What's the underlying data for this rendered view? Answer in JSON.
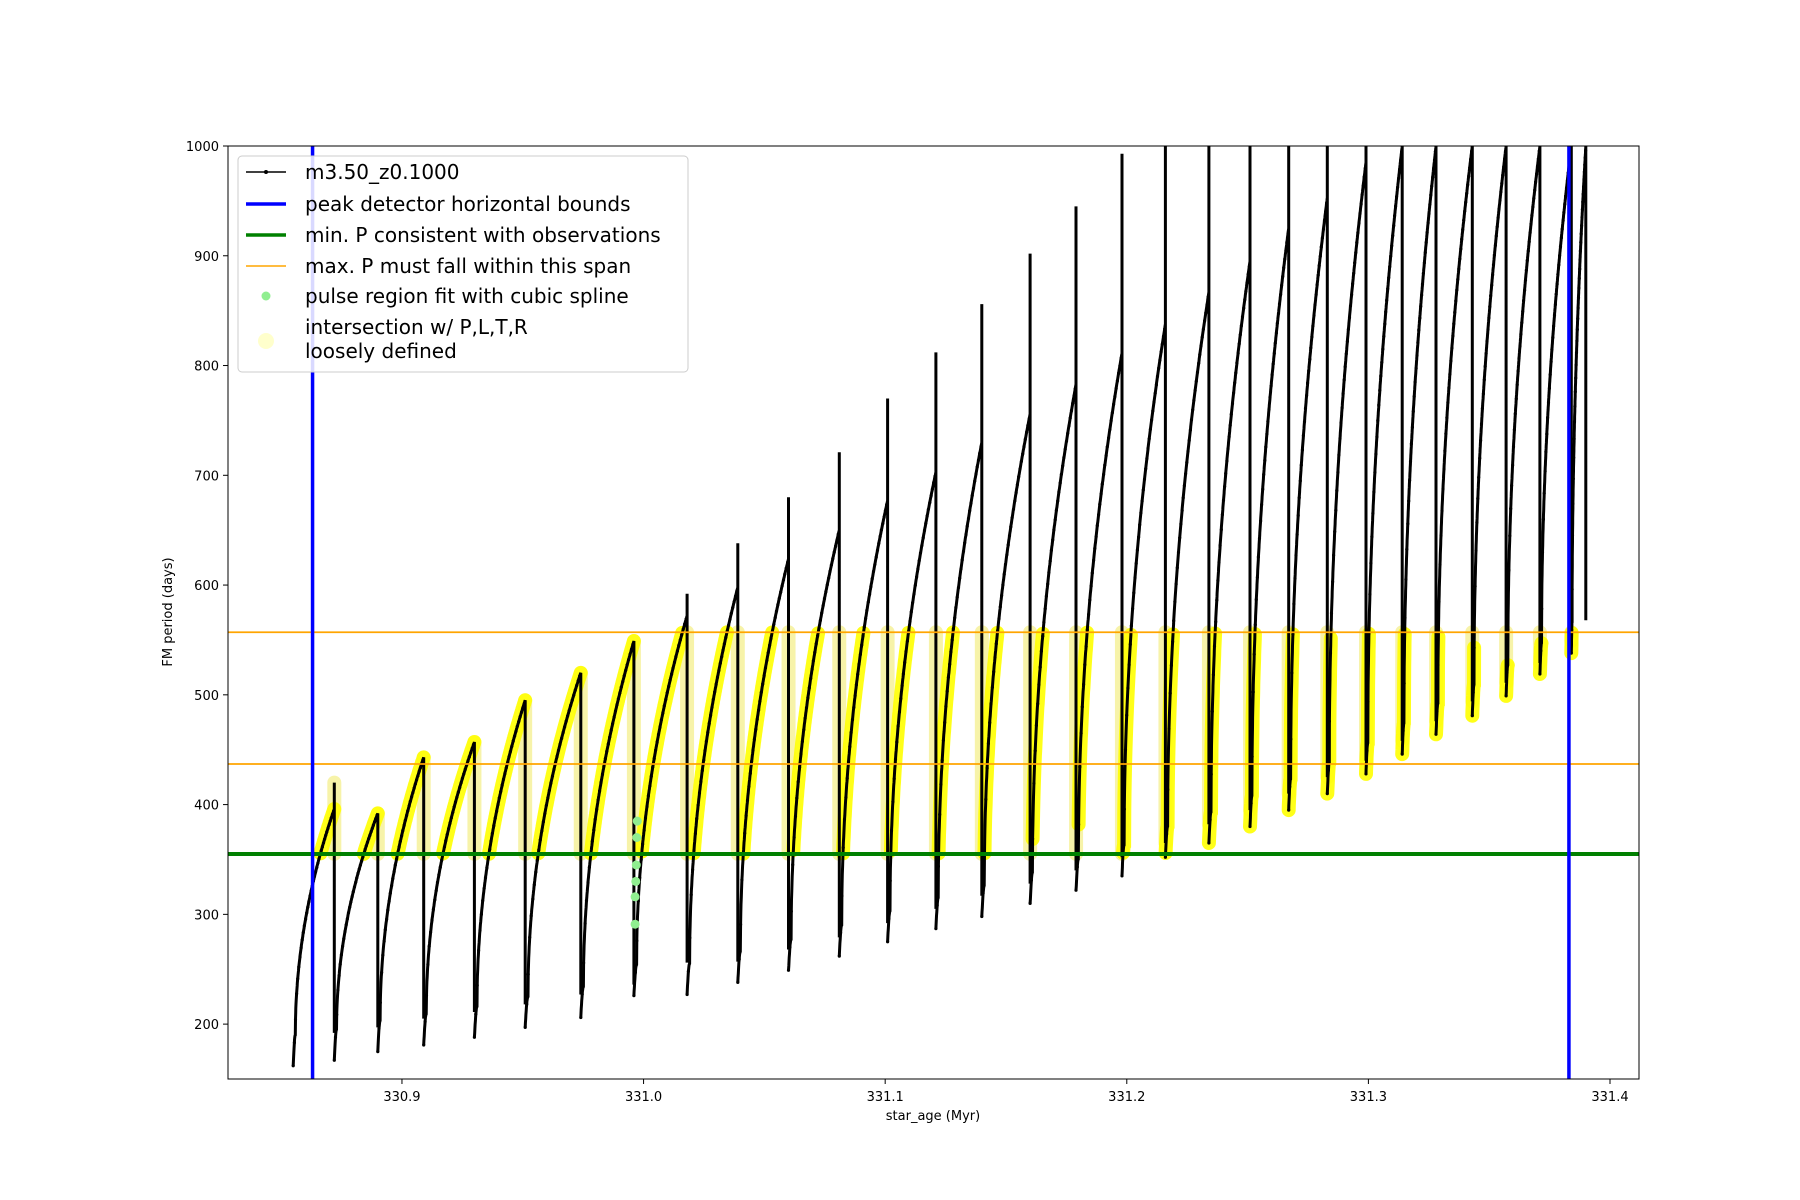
{
  "chart_data": {
    "type": "line",
    "xlabel": "star_age (Myr)",
    "ylabel": "FM period (days)",
    "xlim": [
      330.828,
      331.412
    ],
    "ylim": [
      150,
      1000
    ],
    "xticks": [
      330.9,
      331.0,
      331.1,
      331.2,
      331.3,
      331.4
    ],
    "xtick_labels": [
      "330.9",
      "331.0",
      "331.1",
      "331.2",
      "331.3",
      "331.4"
    ],
    "yticks": [
      200,
      300,
      400,
      500,
      600,
      700,
      800,
      900,
      1000
    ],
    "ytick_labels": [
      "200",
      "300",
      "400",
      "500",
      "600",
      "700",
      "800",
      "900",
      "1000"
    ],
    "grid": false,
    "legend_position": "top-left",
    "colors": {
      "model": "#000000",
      "bounds": "#0000ff",
      "min_p": "#008000",
      "max_p": "#ffa500",
      "spline": "#90ee90",
      "intersection": "#ffff00",
      "loose": "#ffffcc"
    },
    "legend": [
      {
        "label": "m3.50_z0.1000",
        "marker": "line-dot",
        "color": "#000000"
      },
      {
        "label": "peak detector horizontal bounds",
        "marker": "line",
        "color": "#0000ff"
      },
      {
        "label": "min. P consistent with observations",
        "marker": "line",
        "color": "#008000"
      },
      {
        "label": "max. P must fall within this span",
        "marker": "thin-line",
        "color": "#ffa500"
      },
      {
        "label": "pulse region fit with cubic spline",
        "marker": "dot",
        "color": "#90ee90"
      },
      {
        "label": "intersection w/ P,L,T,R",
        "label2": "loosely defined",
        "marker": "big-dot",
        "color": "#ffffcc"
      }
    ],
    "vertical_bounds": [
      330.863,
      331.383
    ],
    "min_period": 355,
    "max_period_span": [
      437,
      557
    ],
    "pulse_cycles": [
      {
        "start": 330.855,
        "end": 330.872,
        "min": 162,
        "peak": 396,
        "spike": 420
      },
      {
        "start": 330.872,
        "end": 330.89,
        "min": 167,
        "peak": 392
      },
      {
        "start": 330.89,
        "end": 330.909,
        "min": 175,
        "peak": 443
      },
      {
        "start": 330.909,
        "end": 330.93,
        "min": 181,
        "peak": 457
      },
      {
        "start": 330.93,
        "end": 330.951,
        "min": 188,
        "peak": 495
      },
      {
        "start": 330.951,
        "end": 330.974,
        "min": 197,
        "peak": 520
      },
      {
        "start": 330.974,
        "end": 330.996,
        "min": 206,
        "peak": 549
      },
      {
        "start": 330.996,
        "end": 331.018,
        "min": 226,
        "peak": 572,
        "spike": 592
      },
      {
        "start": 331.018,
        "end": 331.039,
        "min": 227,
        "peak": 598,
        "spike": 638
      },
      {
        "start": 331.039,
        "end": 331.06,
        "min": 238,
        "peak": 624,
        "spike": 680
      },
      {
        "start": 331.06,
        "end": 331.081,
        "min": 249,
        "peak": 650,
        "spike": 721
      },
      {
        "start": 331.081,
        "end": 331.101,
        "min": 262,
        "peak": 677,
        "spike": 770
      },
      {
        "start": 331.101,
        "end": 331.121,
        "min": 275,
        "peak": 703,
        "spike": 812
      },
      {
        "start": 331.121,
        "end": 331.14,
        "min": 287,
        "peak": 730,
        "spike": 856
      },
      {
        "start": 331.14,
        "end": 331.16,
        "min": 298,
        "peak": 756,
        "spike": 902
      },
      {
        "start": 331.16,
        "end": 331.179,
        "min": 310,
        "peak": 783,
        "spike": 945
      },
      {
        "start": 331.179,
        "end": 331.198,
        "min": 322,
        "peak": 811,
        "spike": 993
      },
      {
        "start": 331.198,
        "end": 331.216,
        "min": 335,
        "peak": 838,
        "spike": 1000
      },
      {
        "start": 331.216,
        "end": 331.234,
        "min": 352,
        "peak": 867,
        "spike": 1000
      },
      {
        "start": 331.234,
        "end": 331.251,
        "min": 365,
        "peak": 895,
        "spike": 1000
      },
      {
        "start": 331.251,
        "end": 331.267,
        "min": 380,
        "peak": 925,
        "spike": 1000
      },
      {
        "start": 331.267,
        "end": 331.283,
        "min": 395,
        "peak": 953,
        "spike": 1000
      },
      {
        "start": 331.283,
        "end": 331.299,
        "min": 410,
        "peak": 985,
        "spike": 1000
      },
      {
        "start": 331.299,
        "end": 331.314,
        "min": 428,
        "peak": 1000
      },
      {
        "start": 331.314,
        "end": 331.328,
        "min": 446,
        "peak": 1000
      },
      {
        "start": 331.328,
        "end": 331.343,
        "min": 464,
        "peak": 1000
      },
      {
        "start": 331.343,
        "end": 331.357,
        "min": 481,
        "peak": 1000
      },
      {
        "start": 331.357,
        "end": 331.371,
        "min": 499,
        "peak": 1000
      },
      {
        "start": 331.371,
        "end": 331.384,
        "min": 519,
        "peak": 1000
      },
      {
        "start": 331.384,
        "end": 331.39,
        "min": 538,
        "peak": 1000
      }
    ],
    "spline_points": [
      {
        "x": 330.9965,
        "y": 291
      },
      {
        "x": 330.9965,
        "y": 316
      },
      {
        "x": 330.9968,
        "y": 330
      },
      {
        "x": 330.997,
        "y": 345
      },
      {
        "x": 330.9972,
        "y": 370
      },
      {
        "x": 330.9974,
        "y": 385
      }
    ]
  }
}
